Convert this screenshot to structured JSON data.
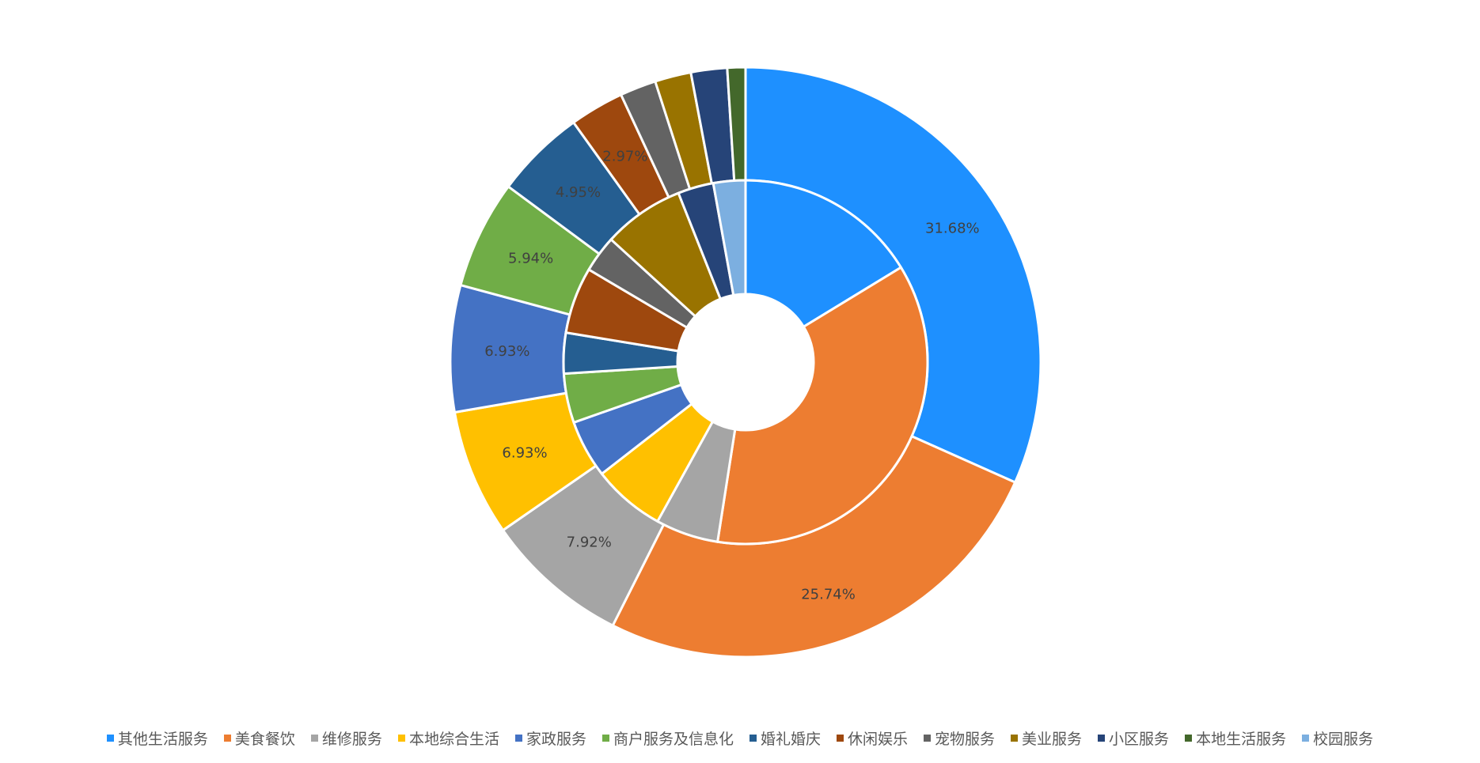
{
  "chart_data": {
    "type": "pie",
    "subtype": "nested-donut",
    "title": "",
    "categories": [
      "其他生活服务",
      "美食餐饮",
      "维修服务",
      "本地综合生活",
      "家政服务",
      "商户服务及信息化",
      "婚礼婚庆",
      "休闲娱乐",
      "宠物服务",
      "美业服务",
      "小区服务",
      "本地生活服务",
      "校园服务"
    ],
    "colors": [
      "#1E90FF",
      "#ED7D31",
      "#A5A5A5",
      "#FFC000",
      "#4472C4",
      "#70AD47",
      "#255E91",
      "#9E480E",
      "#636363",
      "#997300",
      "#264478",
      "#43682B",
      "#7CAFE0"
    ],
    "series": [
      {
        "name": "outer",
        "values": [
          31.68,
          25.74,
          7.92,
          6.93,
          6.93,
          5.94,
          4.95,
          2.97,
          1.98,
          1.98,
          1.98,
          0.99,
          0
        ]
      },
      {
        "name": "inner",
        "values": [
          14.9,
          33.1,
          5.1,
          5.9,
          4.7,
          4.0,
          3.3,
          5.4,
          3.0,
          6.6,
          2.9,
          0,
          2.6
        ]
      }
    ],
    "data_labels": [
      "31.68%",
      "25.74%",
      "7.92%",
      "6.93%",
      "6.93%",
      "5.94%",
      "4.95%",
      "2.97%",
      "",
      "",
      "",
      "",
      ""
    ],
    "legend_position": "bottom"
  }
}
